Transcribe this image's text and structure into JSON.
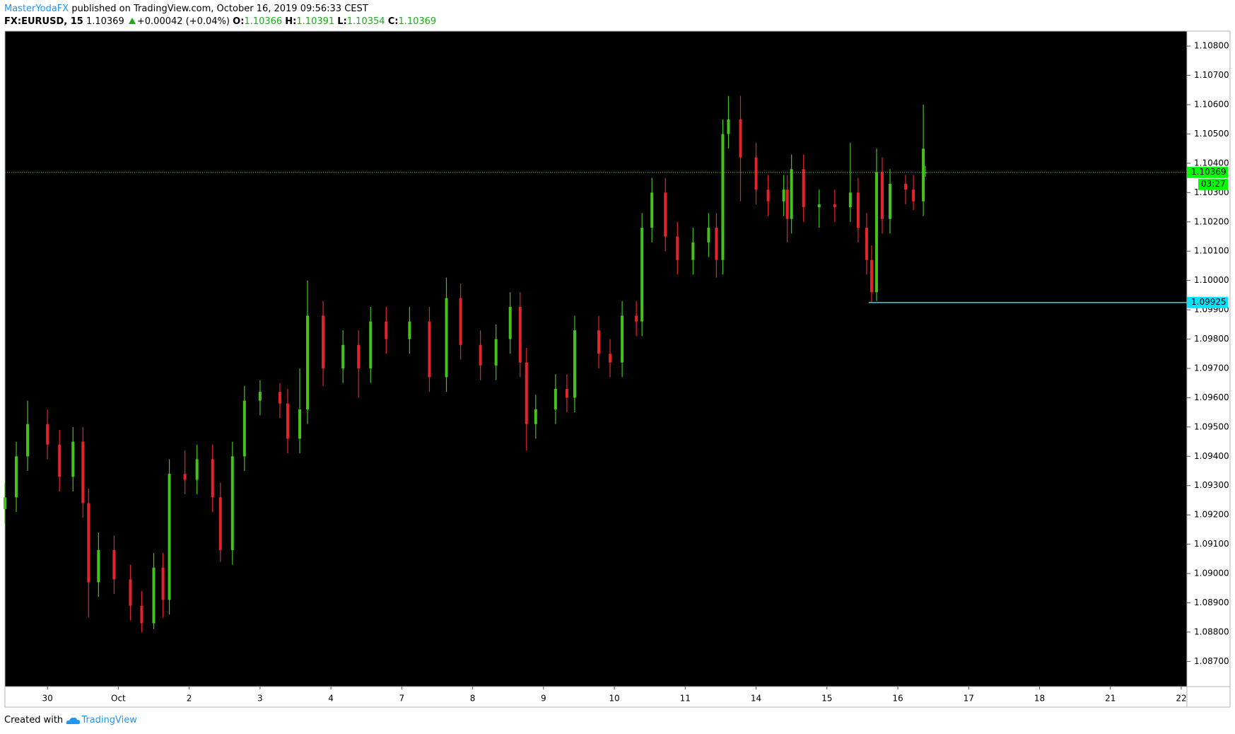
{
  "header": {
    "author": "MasterYodaFX",
    "published": "published on TradingView.com, October 16, 2019 09:56:33 CEST"
  },
  "chart_data": {
    "type": "candlestick",
    "symbol": "FX:EURUSD, 15",
    "change": "+0.00042 (+0.04%)",
    "ohlc_labels": [
      "O:",
      "H:",
      "L:",
      "C:"
    ],
    "x": [
      -0.6,
      -0.44,
      -0.28,
      0,
      0.17,
      0.36,
      0.5,
      0.58,
      0.72,
      0.94,
      1.17,
      1.33,
      1.5,
      1.63,
      1.72,
      1.94,
      2.11,
      2.33,
      2.44,
      2.61,
      2.78,
      3,
      3.28,
      3.39,
      3.56,
      3.67,
      3.89,
      4.17,
      4.39,
      4.56,
      4.78,
      5.11,
      5.39,
      5.63,
      5.83,
      6.11,
      6.33,
      6.53,
      6.67,
      6.76,
      6.89,
      7.17,
      7.33,
      7.44,
      7.78,
      7.94,
      8.11,
      8.31,
      8.39,
      8.53,
      8.72,
      8.89,
      9.11,
      9.33,
      9.44,
      9.53,
      9.61,
      9.78,
      10,
      10.17,
      10.39,
      10.44,
      10.5,
      10.67,
      10.89,
      11.11,
      11.33,
      11.44,
      11.56,
      11.63,
      11.7,
      11.78,
      11.89,
      12.11,
      12.22,
      12.36,
      12.39
    ],
    "open": [
      1.0922,
      1.0926,
      1.094,
      1.0951,
      1.0944,
      1.0933,
      1.0945,
      1.0924,
      1.0897,
      1.0908,
      1.0898,
      1.0889,
      1.0883,
      1.0902,
      1.0891,
      1.0934,
      1.0932,
      1.0939,
      1.0926,
      1.0908,
      1.094,
      1.0959,
      1.0962,
      1.0958,
      1.0946,
      1.0956,
      1.0988,
      1.097,
      1.0978,
      1.097,
      1.0986,
      1.098,
      1.0986,
      1.0967,
      1.0994,
      1.0978,
      1.0971,
      1.098,
      1.0991,
      1.0972,
      1.0951,
      1.0956,
      1.0963,
      1.096,
      1.0983,
      1.0975,
      1.0972,
      1.0988,
      1.0986,
      1.1018,
      1.103,
      1.1015,
      1.1007,
      1.1013,
      1.1018,
      1.1007,
      1.105,
      1.1055,
      1.1042,
      1.1031,
      1.1027,
      1.1031,
      1.1021,
      1.1038,
      1.1025,
      1.1026,
      1.1025,
      1.103,
      1.1018,
      1.1007,
      1.0996,
      1.1037,
      1.1021,
      1.1033,
      1.1031,
      1.1027,
      1.10366
    ],
    "high": [
      1.0931,
      1.0945,
      1.0959,
      1.0956,
      1.0949,
      1.095,
      1.095,
      1.0929,
      1.0914,
      1.0913,
      1.0903,
      1.0894,
      1.0907,
      1.0907,
      1.0939,
      1.0942,
      1.0944,
      1.0944,
      1.0931,
      1.0945,
      1.0964,
      1.0966,
      1.0965,
      1.0963,
      1.097,
      1.1,
      1.0993,
      1.0983,
      1.0983,
      1.0991,
      1.0991,
      1.0991,
      1.0991,
      1.1001,
      1.0999,
      1.0983,
      1.0985,
      1.0996,
      1.0996,
      1.0977,
      1.0961,
      1.0968,
      1.0968,
      1.0988,
      1.0988,
      1.098,
      1.0993,
      1.0993,
      1.1023,
      1.1035,
      1.1035,
      1.102,
      1.1018,
      1.1023,
      1.1023,
      1.1055,
      1.1063,
      1.1063,
      1.1047,
      1.1036,
      1.1036,
      1.1036,
      1.1043,
      1.1043,
      1.1031,
      1.1031,
      1.1047,
      1.1035,
      1.1023,
      1.1012,
      1.1045,
      1.1042,
      1.1038,
      1.1036,
      1.1036,
      1.106,
      1.10391
    ],
    "low": [
      1.0917,
      1.0921,
      1.0935,
      1.0939,
      1.0928,
      1.0928,
      1.0919,
      1.0885,
      1.0892,
      1.0893,
      1.0884,
      1.088,
      1.0881,
      1.0885,
      1.0886,
      1.0927,
      1.0927,
      1.0921,
      1.0904,
      1.0903,
      1.0935,
      1.0954,
      1.0953,
      1.0941,
      1.0941,
      1.0951,
      1.0964,
      1.0965,
      1.096,
      1.0965,
      1.0975,
      1.0975,
      1.0962,
      1.0962,
      1.0973,
      1.0966,
      1.0966,
      1.0975,
      1.0967,
      1.0942,
      1.0946,
      1.0951,
      1.0955,
      1.0955,
      1.097,
      1.0967,
      1.0967,
      1.0981,
      1.0981,
      1.1013,
      1.101,
      1.1002,
      1.1002,
      1.1008,
      1.1001,
      1.1002,
      1.1045,
      1.1027,
      1.1026,
      1.1022,
      1.1022,
      1.1013,
      1.1016,
      1.102,
      1.1018,
      1.102,
      1.102,
      1.1013,
      1.1002,
      1.09925,
      1.0993,
      1.1016,
      1.1016,
      1.1026,
      1.1024,
      1.1022,
      1.10354
    ],
    "close": [
      1.0926,
      1.094,
      1.0951,
      1.0944,
      1.0933,
      1.0945,
      1.0924,
      1.0897,
      1.0908,
      1.0898,
      1.0889,
      1.0883,
      1.0902,
      1.0891,
      1.0934,
      1.0932,
      1.0939,
      1.0926,
      1.0908,
      1.094,
      1.0959,
      1.0962,
      1.0958,
      1.0946,
      1.0956,
      1.0988,
      1.097,
      1.0978,
      1.097,
      1.0986,
      1.098,
      1.0986,
      1.0967,
      1.0994,
      1.0978,
      1.0971,
      1.098,
      1.0991,
      1.0972,
      1.0951,
      1.0956,
      1.0963,
      1.096,
      1.0983,
      1.0975,
      1.0972,
      1.0988,
      1.0986,
      1.1018,
      1.103,
      1.1015,
      1.1007,
      1.1013,
      1.1018,
      1.1007,
      1.105,
      1.1055,
      1.1042,
      1.1031,
      1.1027,
      1.1031,
      1.1021,
      1.1038,
      1.1025,
      1.1026,
      1.1025,
      1.103,
      1.1018,
      1.1007,
      1.0996,
      1.1037,
      1.1021,
      1.1033,
      1.1031,
      1.1027,
      1.1045,
      1.10369
    ],
    "up_color": "#45c21c",
    "down_color": "#e5232b",
    "last_price_color": "#00ff00",
    "countdown": "03:27",
    "hlines": [
      {
        "value": 1.09925,
        "color": "#00e5ff",
        "x_start": 11.59
      }
    ],
    "xlim": [
      -0.6,
      16.08
    ],
    "ylim": [
      1.08614,
      1.10851
    ],
    "grid": false,
    "xticks": [
      {
        "value": 0,
        "label": "30"
      },
      {
        "value": 1,
        "label": "Oct"
      },
      {
        "value": 2,
        "label": "2"
      },
      {
        "value": 3,
        "label": "3"
      },
      {
        "value": 4,
        "label": "4"
      },
      {
        "value": 5,
        "label": "7"
      },
      {
        "value": 6,
        "label": "8"
      },
      {
        "value": 7,
        "label": "9"
      },
      {
        "value": 8,
        "label": "10"
      },
      {
        "value": 9,
        "label": "11"
      },
      {
        "value": 10,
        "label": "14"
      },
      {
        "value": 11,
        "label": "15"
      },
      {
        "value": 12,
        "label": "16"
      },
      {
        "value": 13,
        "label": "17"
      },
      {
        "value": 14,
        "label": "18"
      },
      {
        "value": 15,
        "label": "21"
      },
      {
        "value": 16,
        "label": "22"
      }
    ],
    "yticks": [
      {
        "value": 1.087,
        "label": "1.08700"
      },
      {
        "value": 1.088,
        "label": "1.08800"
      },
      {
        "value": 1.089,
        "label": "1.08900"
      },
      {
        "value": 1.09,
        "label": "1.09000"
      },
      {
        "value": 1.091,
        "label": "1.09100"
      },
      {
        "value": 1.092,
        "label": "1.09200"
      },
      {
        "value": 1.093,
        "label": "1.09300"
      },
      {
        "value": 1.094,
        "label": "1.09400"
      },
      {
        "value": 1.095,
        "label": "1.09500"
      },
      {
        "value": 1.096,
        "label": "1.09600"
      },
      {
        "value": 1.097,
        "label": "1.09700"
      },
      {
        "value": 1.098,
        "label": "1.09800"
      },
      {
        "value": 1.099,
        "label": "1.09900"
      },
      {
        "value": 1.1,
        "label": "1.10000"
      },
      {
        "value": 1.101,
        "label": "1.10100"
      },
      {
        "value": 1.102,
        "label": "1.10200"
      },
      {
        "value": 1.103,
        "label": "1.10300"
      },
      {
        "value": 1.104,
        "label": "1.10400"
      },
      {
        "value": 1.105,
        "label": "1.10500"
      },
      {
        "value": 1.106,
        "label": "1.10600"
      },
      {
        "value": 1.107,
        "label": "1.10700"
      },
      {
        "value": 1.108,
        "label": "1.10800"
      }
    ]
  },
  "footer": {
    "created": "Created with",
    "brand": "TradingView"
  }
}
